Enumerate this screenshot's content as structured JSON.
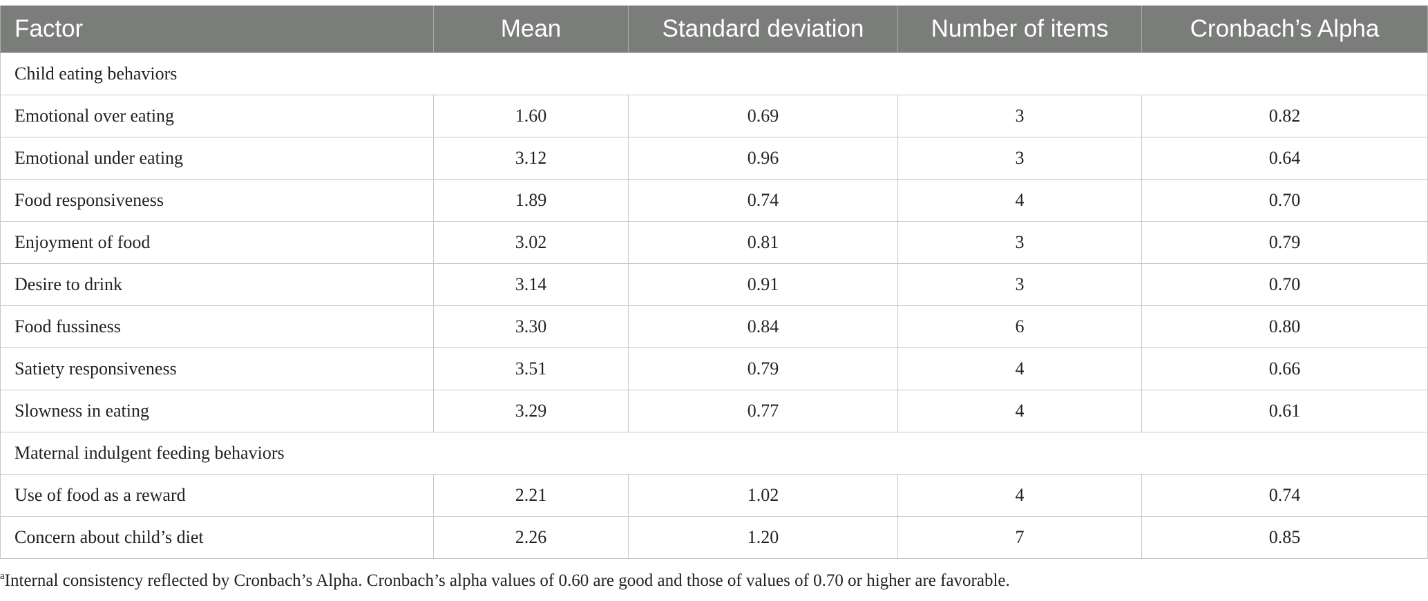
{
  "table": {
    "headers": [
      "Factor",
      "Mean",
      "Standard deviation",
      "Number of items",
      "Cronbach’s Alpha"
    ],
    "sections": [
      {
        "title": "Child eating behaviors",
        "rows": [
          [
            "Emotional over eating",
            "1.60",
            "0.69",
            "3",
            "0.82"
          ],
          [
            "Emotional under eating",
            "3.12",
            "0.96",
            "3",
            "0.64"
          ],
          [
            "Food responsiveness",
            "1.89",
            "0.74",
            "4",
            "0.70"
          ],
          [
            "Enjoyment of food",
            "3.02",
            "0.81",
            "3",
            "0.79"
          ],
          [
            "Desire to drink",
            "3.14",
            "0.91",
            "3",
            "0.70"
          ],
          [
            "Food fussiness",
            "3.30",
            "0.84",
            "6",
            "0.80"
          ],
          [
            "Satiety responsiveness",
            "3.51",
            "0.79",
            "4",
            "0.66"
          ],
          [
            "Slowness in eating",
            "3.29",
            "0.77",
            "4",
            "0.61"
          ]
        ]
      },
      {
        "title": "Maternal indulgent feeding behaviors",
        "rows": [
          [
            "Use of food as a reward",
            "2.21",
            "1.02",
            "4",
            "0.74"
          ],
          [
            "Concern about child’s diet",
            "2.26",
            "1.20",
            "7",
            "0.85"
          ]
        ]
      }
    ]
  },
  "footnote": {
    "marker": "a",
    "text": "Internal consistency reflected by Cronbach’s Alpha. Cronbach’s alpha values of 0.60 are good and those of values of 0.70 or higher are favorable."
  }
}
